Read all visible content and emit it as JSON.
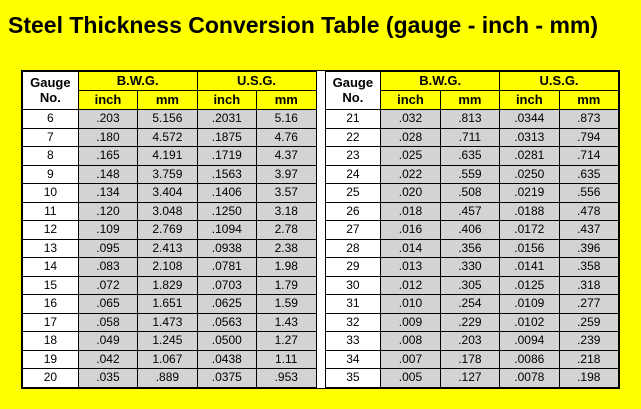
{
  "title": "Steel Thickness Conversion Table (gauge - inch - mm)",
  "colors": {
    "page_background": "#FFFF00",
    "header_yellow": "#FFFF00",
    "cell_white": "#FFFFFF",
    "cell_gray": "#D3D3D3",
    "gap_white": "#FFFFFF",
    "border_black": "#000000"
  },
  "tables": [
    {
      "headers": {
        "gauge_line1": "Gauge",
        "gauge_line2": "No.",
        "bwg": "B.W.G.",
        "usg": "U.S.G.",
        "bwg_inch": "inch",
        "bwg_mm": "mm",
        "usg_inch": "inch",
        "usg_mm": "mm"
      },
      "rows": [
        [
          "6",
          ".203",
          "5.156",
          ".2031",
          "5.16"
        ],
        [
          "7",
          ".180",
          "4.572",
          ".1875",
          "4.76"
        ],
        [
          "8",
          ".165",
          "4.191",
          ".1719",
          "4.37"
        ],
        [
          "9",
          ".148",
          "3.759",
          ".1563",
          "3.97"
        ],
        [
          "10",
          ".134",
          "3.404",
          ".1406",
          "3.57"
        ],
        [
          "11",
          ".120",
          "3.048",
          ".1250",
          "3.18"
        ],
        [
          "12",
          ".109",
          "2.769",
          ".1094",
          "2.78"
        ],
        [
          "13",
          ".095",
          "2.413",
          ".0938",
          "2.38"
        ],
        [
          "14",
          ".083",
          "2.108",
          ".0781",
          "1.98"
        ],
        [
          "15",
          ".072",
          "1.829",
          ".0703",
          "1.79"
        ],
        [
          "16",
          ".065",
          "1.651",
          ".0625",
          "1.59"
        ],
        [
          "17",
          ".058",
          "1.473",
          ".0563",
          "1.43"
        ],
        [
          "18",
          ".049",
          "1.245",
          ".0500",
          "1.27"
        ],
        [
          "19",
          ".042",
          "1.067",
          ".0438",
          "1.11"
        ],
        [
          "20",
          ".035",
          ".889",
          ".0375",
          ".953"
        ]
      ]
    },
    {
      "headers": {
        "gauge_line1": "Gauge",
        "gauge_line2": "No.",
        "bwg": "B.W.G.",
        "usg": "U.S.G.",
        "bwg_inch": "inch",
        "bwg_mm": "mm",
        "usg_inch": "inch",
        "usg_mm": "mm"
      },
      "rows": [
        [
          "21",
          ".032",
          ".813",
          ".0344",
          ".873"
        ],
        [
          "22",
          ".028",
          ".711",
          ".0313",
          ".794"
        ],
        [
          "23",
          ".025",
          ".635",
          ".0281",
          ".714"
        ],
        [
          "24",
          ".022",
          ".559",
          ".0250",
          ".635"
        ],
        [
          "25",
          ".020",
          ".508",
          ".0219",
          ".556"
        ],
        [
          "26",
          ".018",
          ".457",
          ".0188",
          ".478"
        ],
        [
          "27",
          ".016",
          ".406",
          ".0172",
          ".437"
        ],
        [
          "28",
          ".014",
          ".356",
          ".0156",
          ".396"
        ],
        [
          "29",
          ".013",
          ".330",
          ".0141",
          ".358"
        ],
        [
          "30",
          ".012",
          ".305",
          ".0125",
          ".318"
        ],
        [
          "31",
          ".010",
          ".254",
          ".0109",
          ".277"
        ],
        [
          "32",
          ".009",
          ".229",
          ".0102",
          ".259"
        ],
        [
          "33",
          ".008",
          ".203",
          ".0094",
          ".239"
        ],
        [
          "34",
          ".007",
          ".178",
          ".0086",
          ".218"
        ],
        [
          "35",
          ".005",
          ".127",
          ".0078",
          ".198"
        ]
      ]
    }
  ]
}
